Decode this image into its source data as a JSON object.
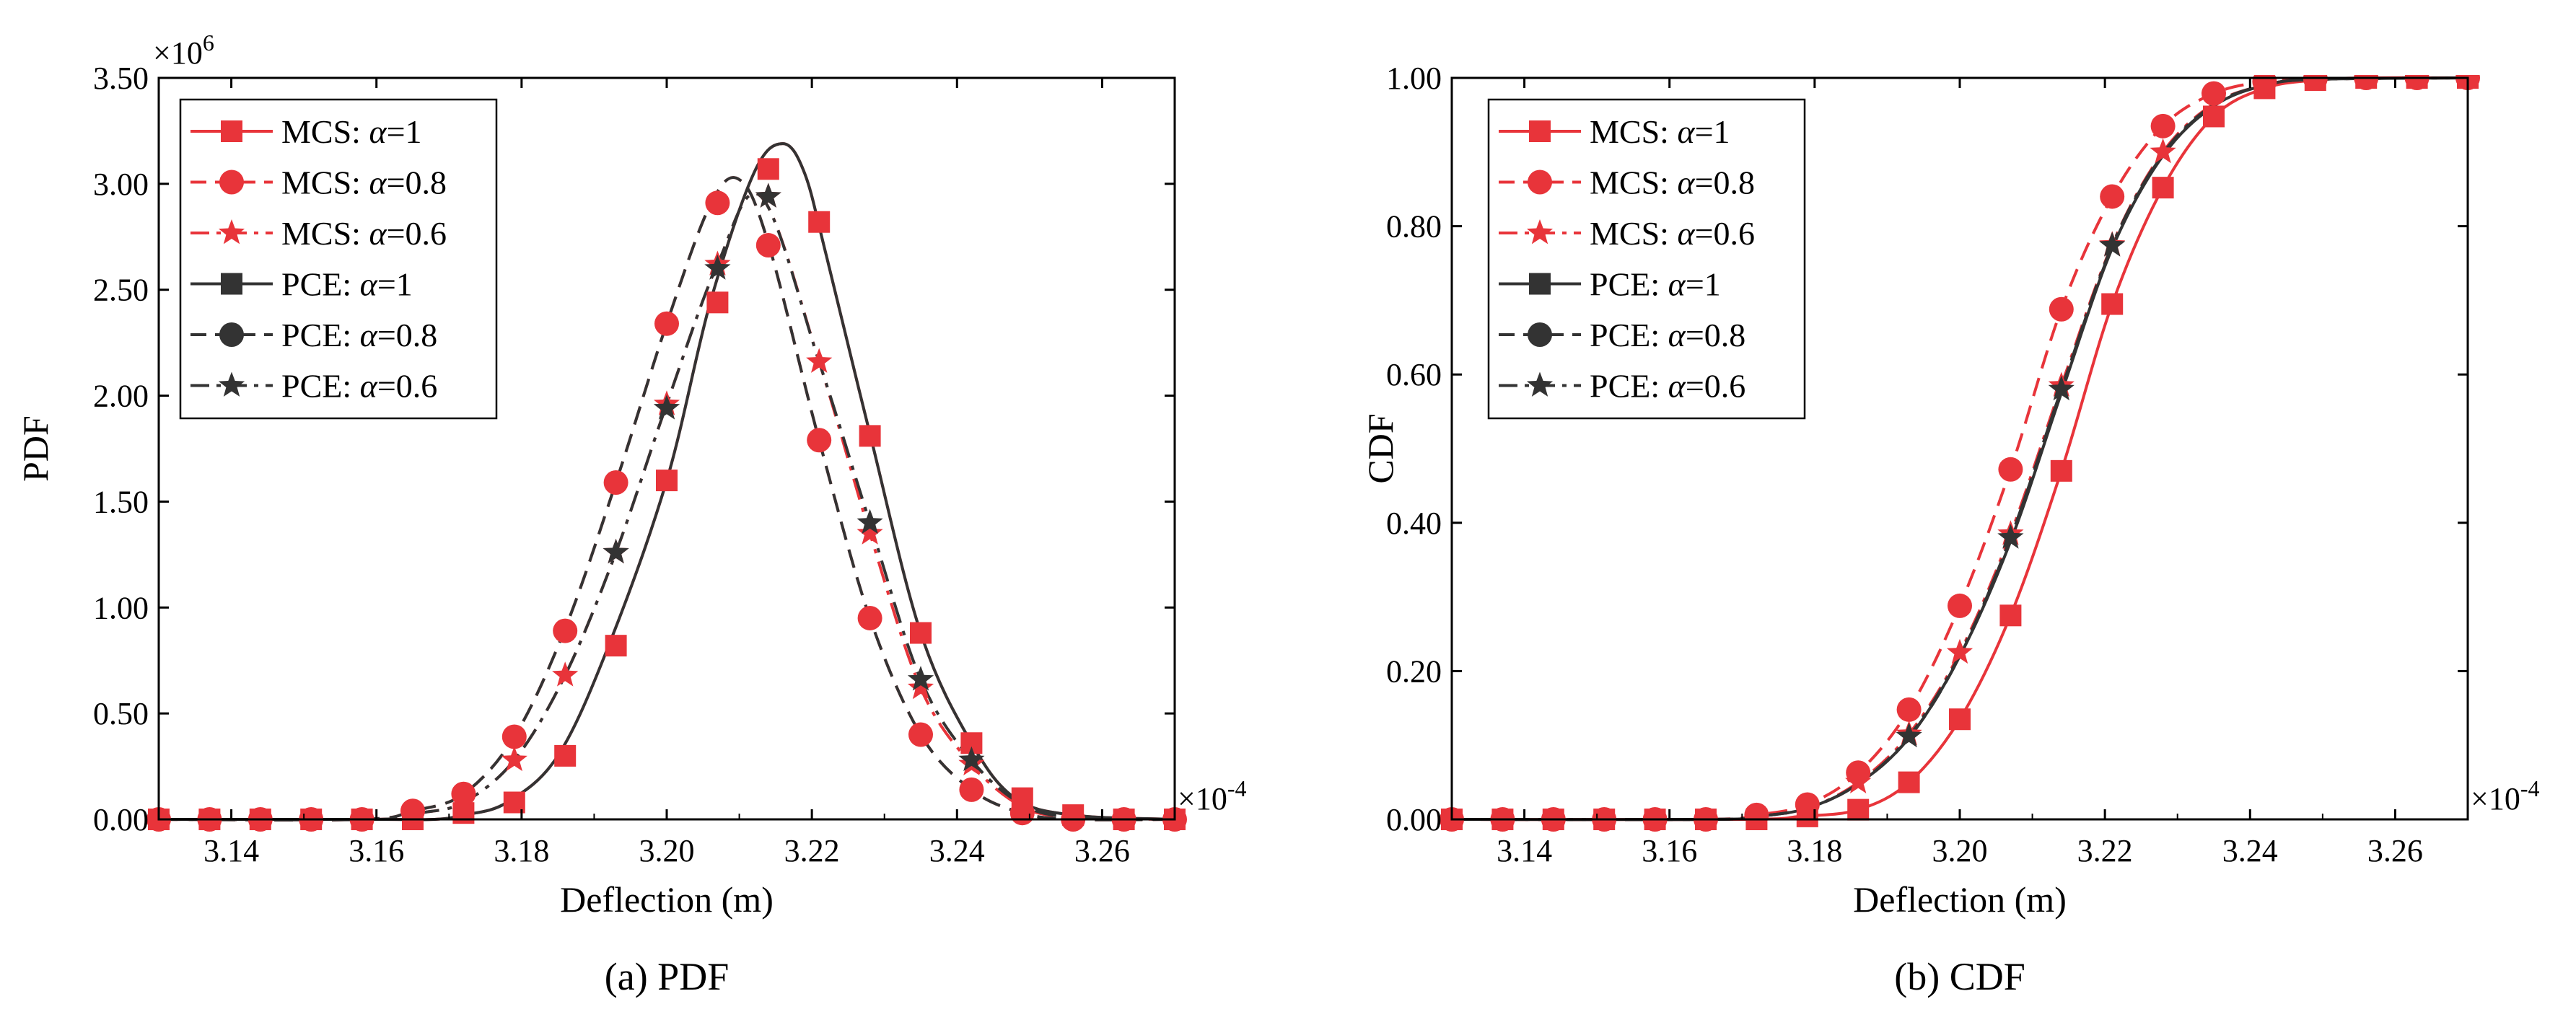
{
  "figure": {
    "captions": [
      "(a) PDF",
      "(b) CDF"
    ]
  },
  "chart_data": [
    {
      "type": "line",
      "title": "(a) PDF",
      "xlabel": "Deflection (m)",
      "ylabel": "PDF",
      "x_multiplier": "×10",
      "x_multiplier_exp": "-4",
      "y_multiplier": "×10",
      "y_multiplier_exp": "6",
      "xlim": [
        3.13,
        3.27
      ],
      "ylim": [
        0,
        3.5
      ],
      "x_ticks": [
        3.14,
        3.16,
        3.18,
        3.2,
        3.22,
        3.24,
        3.26
      ],
      "x_tick_labels": [
        "3.14",
        "3.16",
        "3.18",
        "3.20",
        "3.22",
        "3.24",
        "3.26"
      ],
      "y_ticks": [
        0,
        0.5,
        1,
        1.5,
        2,
        2.5,
        3,
        3.5
      ],
      "y_tick_labels": [
        "0.00",
        "0.50",
        "1.00",
        "1.50",
        "2.00",
        "2.50",
        "3.00",
        "3.50"
      ],
      "legend_position": "top-left",
      "marker_x": [
        3.13,
        3.137,
        3.144,
        3.151,
        3.158,
        3.165,
        3.172,
        3.179,
        3.186,
        3.193,
        3.2,
        3.207,
        3.214,
        3.221,
        3.228,
        3.235,
        3.242,
        3.249,
        3.256,
        3.263,
        3.27
      ],
      "series": [
        {
          "name": "MCS: ",
          "alpha_label": "α",
          "alpha_value": "=1",
          "color": "#e8343a",
          "dash": "solid",
          "marker": "square",
          "x": [
            3.13,
            3.16,
            3.168,
            3.172,
            3.178,
            3.185,
            3.192,
            3.2,
            3.206,
            3.212,
            3.216,
            3.219,
            3.222,
            3.228,
            3.235,
            3.242,
            3.248,
            3.256,
            3.27
          ],
          "values": [
            0,
            0,
            0.0,
            0.02,
            0.08,
            0.3,
            0.82,
            1.6,
            2.44,
            3.05,
            3.19,
            3.05,
            2.66,
            1.82,
            0.88,
            0.36,
            0.1,
            0.02,
            0
          ]
        },
        {
          "name": "MCS: ",
          "alpha_label": "α",
          "alpha_value": "=0.8",
          "color": "#e8343a",
          "dash": "dashed",
          "marker": "circle",
          "x": [
            3.13,
            3.158,
            3.165,
            3.172,
            3.179,
            3.186,
            3.193,
            3.2,
            3.206,
            3.21,
            3.214,
            3.221,
            3.228,
            3.235,
            3.242,
            3.249,
            3.256,
            3.27
          ],
          "values": [
            0,
            0,
            0.04,
            0.12,
            0.39,
            0.9,
            1.59,
            2.34,
            2.9,
            3.02,
            2.72,
            1.79,
            0.95,
            0.4,
            0.14,
            0.03,
            0,
            0
          ]
        },
        {
          "name": "MCS: ",
          "alpha_label": "α",
          "alpha_value": "=0.6",
          "color": "#e8343a",
          "dash": "dashdot",
          "marker": "star",
          "x": [
            3.13,
            3.16,
            3.166,
            3.172,
            3.179,
            3.186,
            3.193,
            3.2,
            3.207,
            3.213,
            3.221,
            3.228,
            3.235,
            3.242,
            3.249,
            3.256,
            3.27
          ],
          "values": [
            0,
            0,
            0.03,
            0.08,
            0.28,
            0.68,
            1.26,
            1.96,
            2.62,
            2.94,
            2.16,
            1.35,
            0.62,
            0.26,
            0.06,
            0.01,
            0
          ]
        },
        {
          "name": "PCE: ",
          "alpha_label": "α",
          "alpha_value": "=1",
          "color": "#333333",
          "dash": "solid",
          "marker": "square",
          "x": [
            3.13,
            3.16,
            3.168,
            3.172,
            3.178,
            3.185,
            3.192,
            3.2,
            3.206,
            3.212,
            3.216,
            3.219,
            3.222,
            3.228,
            3.235,
            3.242,
            3.248,
            3.256,
            3.27
          ],
          "values": [
            0,
            0,
            0.0,
            0.02,
            0.08,
            0.3,
            0.82,
            1.6,
            2.44,
            3.05,
            3.19,
            3.05,
            2.66,
            1.82,
            0.88,
            0.36,
            0.1,
            0.02,
            0
          ]
        },
        {
          "name": "PCE: ",
          "alpha_label": "α",
          "alpha_value": "=0.8",
          "color": "#333333",
          "dash": "dashed",
          "marker": "circle",
          "x": [
            3.13,
            3.158,
            3.165,
            3.172,
            3.179,
            3.186,
            3.193,
            3.2,
            3.206,
            3.21,
            3.214,
            3.221,
            3.228,
            3.235,
            3.242,
            3.249,
            3.256,
            3.27
          ],
          "values": [
            0,
            0,
            0.04,
            0.12,
            0.39,
            0.9,
            1.59,
            2.34,
            2.9,
            3.02,
            2.72,
            1.79,
            0.95,
            0.4,
            0.14,
            0.03,
            0,
            0
          ]
        },
        {
          "name": "PCE: ",
          "alpha_label": "α",
          "alpha_value": "=0.6",
          "color": "#333333",
          "dash": "dashdot",
          "marker": "star",
          "x": [
            3.13,
            3.16,
            3.166,
            3.172,
            3.179,
            3.186,
            3.193,
            3.2,
            3.207,
            3.213,
            3.221,
            3.228,
            3.235,
            3.242,
            3.249,
            3.256,
            3.27
          ],
          "values": [
            0,
            0,
            0.03,
            0.08,
            0.28,
            0.68,
            1.26,
            1.96,
            2.62,
            2.94,
            2.16,
            1.4,
            0.66,
            0.28,
            0.07,
            0.01,
            0
          ]
        }
      ],
      "markers": [
        {
          "series": 0,
          "x": [
            3.13,
            3.137,
            3.144,
            3.151,
            3.158,
            3.165,
            3.172,
            3.179,
            3.186,
            3.193,
            3.2,
            3.207,
            3.214,
            3.221,
            3.228,
            3.235,
            3.242,
            3.249,
            3.256,
            3.263,
            3.27
          ],
          "values": [
            0,
            0,
            0,
            0,
            0,
            0,
            0.03,
            0.08,
            0.3,
            0.82,
            1.6,
            2.44,
            3.07,
            2.82,
            1.81,
            0.88,
            0.36,
            0.1,
            0.02,
            0,
            0
          ]
        },
        {
          "series": 1,
          "x": [
            3.13,
            3.137,
            3.144,
            3.151,
            3.158,
            3.165,
            3.172,
            3.179,
            3.186,
            3.193,
            3.2,
            3.207,
            3.214,
            3.221,
            3.228,
            3.235,
            3.242,
            3.249,
            3.256,
            3.263,
            3.27
          ],
          "values": [
            0,
            0,
            0,
            0,
            0,
            0.04,
            0.12,
            0.39,
            0.89,
            1.59,
            2.34,
            2.91,
            2.71,
            1.79,
            0.95,
            0.4,
            0.14,
            0.03,
            0,
            0,
            0
          ]
        },
        {
          "series": 2,
          "x": [
            3.179,
            3.186,
            3.193,
            3.2,
            3.207,
            3.214,
            3.221,
            3.228,
            3.235,
            3.242
          ],
          "values": [
            0.28,
            0.68,
            1.26,
            1.96,
            2.62,
            2.94,
            2.16,
            1.35,
            0.62,
            0.26
          ]
        },
        {
          "series": 5,
          "x": [
            3.193,
            3.2,
            3.207,
            3.214,
            3.228,
            3.235,
            3.242
          ],
          "values": [
            1.26,
            1.94,
            2.6,
            2.94,
            1.4,
            0.66,
            0.28
          ]
        }
      ]
    },
    {
      "type": "line",
      "title": "(b) CDF",
      "xlabel": "Deflection (m)",
      "ylabel": "CDF",
      "x_multiplier": "×10",
      "x_multiplier_exp": "-4",
      "xlim": [
        3.13,
        3.27
      ],
      "ylim": [
        0,
        1
      ],
      "x_ticks": [
        3.14,
        3.16,
        3.18,
        3.2,
        3.22,
        3.24,
        3.26
      ],
      "x_tick_labels": [
        "3.14",
        "3.16",
        "3.18",
        "3.20",
        "3.22",
        "3.24",
        "3.26"
      ],
      "y_ticks": [
        0,
        0.2,
        0.4,
        0.6,
        0.8,
        1.0
      ],
      "y_tick_labels": [
        "0.00",
        "0.20",
        "0.40",
        "0.60",
        "0.80",
        "1.00"
      ],
      "legend_position": "top-left",
      "series": [
        {
          "name": "MCS: ",
          "alpha_label": "α",
          "alpha_value": "=1",
          "color": "#e8343a",
          "dash": "solid",
          "marker": "square",
          "x": [
            3.13,
            3.17,
            3.178,
            3.186,
            3.193,
            3.2,
            3.207,
            3.214,
            3.221,
            3.228,
            3.235,
            3.242,
            3.249,
            3.256,
            3.27
          ],
          "values": [
            0,
            0,
            0.004,
            0.013,
            0.05,
            0.135,
            0.275,
            0.47,
            0.695,
            0.852,
            0.948,
            0.986,
            0.997,
            1.0,
            1.0
          ]
        },
        {
          "name": "MCS: ",
          "alpha_label": "α",
          "alpha_value": "=0.8",
          "color": "#e8343a",
          "dash": "dashed",
          "marker": "circle",
          "x": [
            3.13,
            3.165,
            3.172,
            3.179,
            3.186,
            3.193,
            3.2,
            3.207,
            3.214,
            3.221,
            3.228,
            3.235,
            3.242,
            3.249,
            3.27
          ],
          "values": [
            0,
            0,
            0.006,
            0.02,
            0.063,
            0.148,
            0.288,
            0.472,
            0.688,
            0.84,
            0.935,
            0.979,
            0.995,
            0.999,
            1.0
          ]
        },
        {
          "name": "MCS: ",
          "alpha_label": "α",
          "alpha_value": "=0.6",
          "color": "#e8343a",
          "dash": "dashdot",
          "marker": "star",
          "x": [
            3.13,
            3.166,
            3.172,
            3.179,
            3.186,
            3.193,
            3.2,
            3.207,
            3.214,
            3.221,
            3.228,
            3.235,
            3.242,
            3.249,
            3.27
          ],
          "values": [
            0,
            0,
            0.004,
            0.015,
            0.05,
            0.115,
            0.225,
            0.385,
            0.585,
            0.775,
            0.9,
            0.965,
            0.99,
            0.998,
            1.0
          ]
        },
        {
          "name": "PCE: ",
          "alpha_label": "α",
          "alpha_value": "=1",
          "color": "#333333",
          "dash": "solid",
          "marker": "square",
          "x": [
            3.13,
            3.166,
            3.172,
            3.179,
            3.186,
            3.193,
            3.2,
            3.207,
            3.214,
            3.221,
            3.228,
            3.235,
            3.242,
            3.249,
            3.27
          ],
          "values": [
            0,
            0,
            0.004,
            0.015,
            0.048,
            0.11,
            0.22,
            0.375,
            0.575,
            0.77,
            0.895,
            0.962,
            0.99,
            0.998,
            1.0
          ]
        },
        {
          "name": "PCE: ",
          "alpha_label": "α",
          "alpha_value": "=0.8",
          "color": "#333333",
          "dash": "dashed",
          "marker": "circle",
          "x": [
            3.13,
            3.166,
            3.172,
            3.179,
            3.186,
            3.193,
            3.2,
            3.207,
            3.214,
            3.221,
            3.228,
            3.235,
            3.242,
            3.249,
            3.27
          ],
          "values": [
            0,
            0,
            0.004,
            0.015,
            0.048,
            0.11,
            0.22,
            0.38,
            0.58,
            0.772,
            0.897,
            0.963,
            0.99,
            0.998,
            1.0
          ]
        },
        {
          "name": "PCE: ",
          "alpha_label": "α",
          "alpha_value": "=0.6",
          "color": "#333333",
          "dash": "dashdot",
          "marker": "star",
          "x": [
            3.13,
            3.166,
            3.172,
            3.179,
            3.186,
            3.193,
            3.2,
            3.207,
            3.214,
            3.221,
            3.228,
            3.235,
            3.242,
            3.249,
            3.27
          ],
          "values": [
            0,
            0,
            0.004,
            0.015,
            0.048,
            0.112,
            0.222,
            0.38,
            0.58,
            0.774,
            0.898,
            0.964,
            0.99,
            0.998,
            1.0
          ]
        }
      ],
      "markers": [
        {
          "series": 0,
          "x": [
            3.13,
            3.137,
            3.144,
            3.151,
            3.158,
            3.165,
            3.172,
            3.179,
            3.186,
            3.193,
            3.2,
            3.207,
            3.214,
            3.221,
            3.228,
            3.235,
            3.242,
            3.249,
            3.256,
            3.263,
            3.27
          ],
          "values": [
            0,
            0,
            0,
            0,
            0,
            0,
            0,
            0.004,
            0.013,
            0.05,
            0.135,
            0.275,
            0.47,
            0.695,
            0.852,
            0.948,
            0.986,
            0.997,
            1.0,
            1.0,
            1.0
          ]
        },
        {
          "series": 1,
          "x": [
            3.13,
            3.137,
            3.144,
            3.151,
            3.158,
            3.165,
            3.172,
            3.179,
            3.186,
            3.193,
            3.2,
            3.207,
            3.214,
            3.221,
            3.228,
            3.235,
            3.242,
            3.249,
            3.256,
            3.263,
            3.27
          ],
          "values": [
            0,
            0,
            0,
            0,
            0,
            0,
            0.006,
            0.02,
            0.063,
            0.148,
            0.288,
            0.472,
            0.688,
            0.84,
            0.935,
            0.979,
            0.995,
            0.999,
            1.0,
            1.0,
            1.0
          ]
        },
        {
          "series": 2,
          "x": [
            3.186,
            3.193,
            3.2,
            3.207,
            3.214,
            3.221,
            3.228
          ],
          "values": [
            0.05,
            0.115,
            0.225,
            0.385,
            0.585,
            0.775,
            0.9
          ]
        },
        {
          "series": 5,
          "x": [
            3.193,
            3.207,
            3.214,
            3.221
          ],
          "values": [
            0.112,
            0.38,
            0.58,
            0.774
          ]
        }
      ]
    }
  ]
}
